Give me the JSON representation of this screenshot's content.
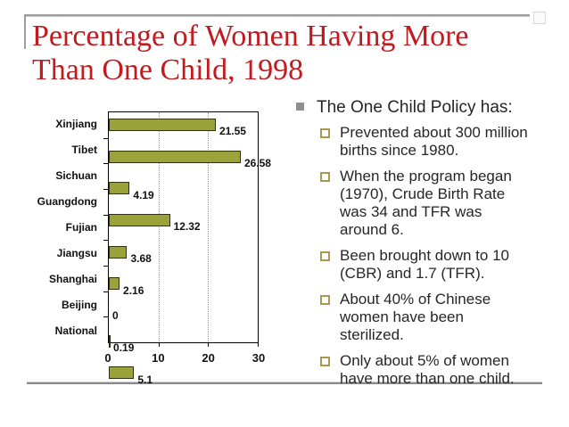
{
  "slide": {
    "title": "Percentage of Women Having More\nThan One Child, 1998",
    "title_color": "#c11a1f"
  },
  "bullets": {
    "heading": "The One Child Policy has:",
    "items": [
      "Prevented about 300 million\nbirths since 1980.",
      "When the program began\n(1970), Crude Birth Rate\nwas 34 and TFR was\naround 6.",
      "Been brought down to 10\n(CBR) and 1.7 (TFR).",
      "About 40% of Chinese\nwomen have been\nsterilized.",
      "Only about 5% of women\nhave more than one child."
    ]
  },
  "chart_data": {
    "type": "bar",
    "orientation": "horizontal",
    "categories": [
      "Xinjiang",
      "Tibet",
      "Sichuan",
      "Guangdong",
      "Fujian",
      "Jiangsu",
      "Shanghai",
      "Beijing",
      "National"
    ],
    "values": [
      21.55,
      26.58,
      4.19,
      12.32,
      3.68,
      2.16,
      0,
      0.19,
      5.1
    ],
    "value_labels": [
      "21.55",
      "26.58",
      "4.19",
      "12.32",
      "3.68",
      "2.16",
      "0",
      "0.19",
      "5.1"
    ],
    "title": "",
    "xlabel": "",
    "ylabel": "",
    "xlim": [
      0,
      30
    ],
    "x_ticks": [
      0,
      10,
      20,
      30
    ],
    "gridlines_at": [
      10,
      20
    ],
    "grid_style": "dotted-vertical",
    "bar_color": "#9aa33a",
    "bar_border_color": "#2f2f14",
    "legend": "none"
  }
}
